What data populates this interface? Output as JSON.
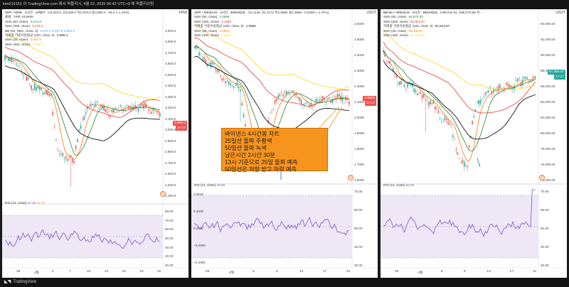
{
  "header": {
    "text": "kim016151 이 TradingView.com 에서 퍼블리시, 4월 22, 2025 06:42 UTC+9 에 퍼블리쉬됨"
  },
  "footer": {
    "logo_icon": "tradingview-logo-icon",
    "brand": "TradingView"
  },
  "annotation": {
    "lines": [
      "바이낸스 4시간봉 차트",
      "25일선 돌파 주황색",
      "50일선 돌파 녹색",
      "남은시간 2시간 30분",
      "13시 기준으로 25일 돌파 예측",
      "50일선은 저항 받고 하락 예측"
    ]
  },
  "panels": [
    {
      "id": "xrp-krw",
      "title": "XRP / KRW · 4시간 · UPBIT",
      "ohlc": "시3,023.0 고3,039.0 저2,970.0 종3,000.0 −35.0 (−1.15%)",
      "currency": "KRW",
      "volume": "볼륨 · XRP 19.984K",
      "indicators": [
        {
          "label": "SMA (50, close)",
          "value": "3,014.9",
          "color": "#2e7d32"
        },
        {
          "label": "SMA (200, close)",
          "value": "3,176.3",
          "color": "#e53935"
        },
        {
          "label": "BB (20, SMA, close, 2)",
          "value": "3,047.0  3,087.8  2,962.2",
          "color": "#42a5f5"
        },
        {
          "label": "거래량 가중이동평균 (100, close, 0)",
          "value": "2,880.4",
          "color": "#111111"
        },
        {
          "label": "SMA (25, close)",
          "value": "3,001.9",
          "color": "#f57c00"
        },
        {
          "label": "SMA (400, close)",
          "value": "3,286.8",
          "color": "#fdd835"
        }
      ],
      "price_labels": [
        "3,900.0",
        "3,800.0",
        "3,700.0",
        "3,600.0",
        "3,500.0",
        "3,400.0",
        "3,300.0",
        "3,200.0",
        "3,100.0",
        "3,000.0",
        "2,900.0",
        "2,800.0",
        "2,700.0",
        "2,600.0",
        "2,500.0",
        "2,400.0"
      ],
      "price_tags": [
        {
          "text": "3,000.0",
          "color": "#ef5350"
        },
        {
          "text": "17:17",
          "color": "#ef5350"
        }
      ],
      "rsi_label": "RSI (14, close)",
      "rsi_value": "47.30",
      "rsi_value2": "46.76",
      "rsi_levels": [
        "80.00",
        "70.00",
        "60.00",
        "50.00",
        "40.00",
        "30.00",
        "20.00"
      ],
      "dates": [
        "28",
        "4월",
        "3",
        "7",
        "10",
        "13",
        "16",
        "19",
        "22"
      ]
    },
    {
      "id": "xrp-usdt",
      "title": "XRP / TetherUS · 4시간 · BINANCE",
      "ohlc": "시2.1148 고2.1172 저2.0594 종2.0858 −0.0290 (−1.37%)",
      "currency": "USDT",
      "volume": "",
      "indicators": [
        {
          "label": "SMA (50, close)",
          "value": "2.0968",
          "color": "#2e7d32"
        },
        {
          "label": "SMA (200, close)",
          "value": "2.1585",
          "color": "#e53935"
        },
        {
          "label": "거래량 가중이동평균 (100, close, 0)",
          "value": "1.9655",
          "color": "#111111"
        },
        {
          "label": "SMA (25, close)",
          "value": "2.0801",
          "color": "#f57c00"
        },
        {
          "label": "SMA (400, close)",
          "value": "2.2932",
          "color": "#fdd835"
        }
      ],
      "price_labels": [
        "2.6000",
        "2.5000",
        "2.4000",
        "2.3000",
        "2.2000",
        "2.1000",
        "2.0000",
        "1.9000",
        "1.8000",
        "1.7000",
        "1.6000"
      ],
      "price_tags": [
        {
          "text": "2.0858",
          "color": "#ef5350"
        },
        {
          "text": "17:17",
          "color": "#ef5350"
        }
      ],
      "rsi_label": "RSI (14, close)",
      "rsi_value": "49.59",
      "rsi_value2": "",
      "rsi_levels": [
        "70.00",
        "60.00",
        "50.00",
        "40.00",
        "30.00"
      ],
      "rsi_extra_levels": [
        "0.6000",
        "0.4000",
        "0.2000",
        "−0.2000",
        "−0.4000"
      ],
      "dates": [
        "29",
        "4월",
        "5",
        "9",
        "13",
        "17",
        "21"
      ]
    },
    {
      "id": "btc-usdt",
      "title": "Bitcoin / TetherUS · 4시간 · BINANCE",
      "ohlc": "시88,044.81 고88,270.88 저...",
      "currency": "USDT",
      "volume": "",
      "indicators": [
        {
          "label": "SMA (50, close)",
          "value": "84,876.30",
          "color": "#2e7d32"
        },
        {
          "label": "SMA (200, close)",
          "value": "83,853.97",
          "color": "#e53935"
        },
        {
          "label": "거래량 가중이동평균 (100, close, 0)",
          "value": "81,512.87",
          "color": "#111111"
        },
        {
          "label": "SMA (25, close)",
          "value": "85,328.67",
          "color": "#f57c00"
        },
        {
          "label": "SMA (400, close)",
          "value": "84,310.50",
          "color": "#fdd835"
        }
      ],
      "price_labels": [
        "94,000.00",
        "92,000.00",
        "90,000.00",
        "88,000.00",
        "86,000.00",
        "84,000.00",
        "82,000.00",
        "80,000.00",
        "78,000.00",
        "76,000.00",
        "74,000.00"
      ],
      "price_tags": [
        {
          "text": "87,265.30",
          "color": "#26a69a"
        },
        {
          "text": "17:17",
          "color": "#26a69a"
        }
      ],
      "rsi_label": "RSI (14, close)",
      "rsi_value": "66.06",
      "rsi_value2": "",
      "rsi_levels": [
        "70.00",
        "60.00",
        "50.00",
        "40.00",
        "30.00"
      ],
      "dates": [
        "29",
        "4월",
        "5",
        "9",
        "13",
        "17",
        "21"
      ]
    }
  ]
}
